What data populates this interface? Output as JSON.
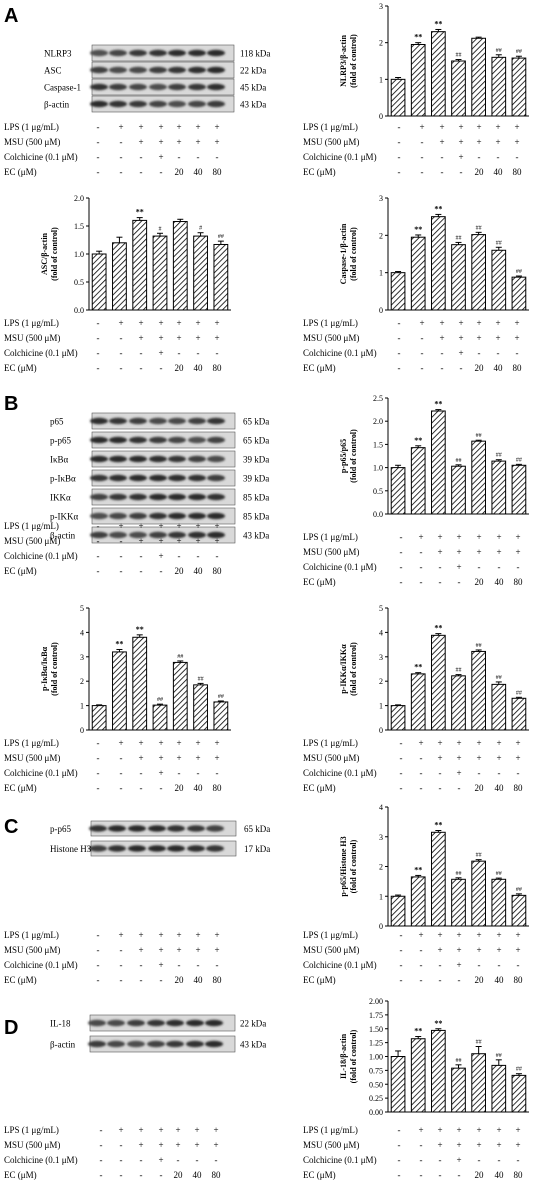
{
  "panels": [
    "A",
    "B",
    "C",
    "D"
  ],
  "treatment": {
    "row_labels": [
      "LPS (1 μg/mL)",
      "MSU (500 μM)",
      "Colchicine (0.1 μM)",
      "EC (μM)"
    ],
    "rows": [
      [
        "-",
        "+",
        "+",
        "+",
        "+",
        "+",
        "+"
      ],
      [
        "-",
        "-",
        "+",
        "+",
        "+",
        "+",
        "+"
      ],
      [
        "-",
        "-",
        "-",
        "+",
        "-",
        "-",
        "-"
      ],
      [
        "-",
        "-",
        "-",
        "-",
        "20",
        "40",
        "80"
      ]
    ]
  },
  "blots": [
    {
      "id": "A",
      "rows": [
        {
          "protein": "NLRP3",
          "size": "118 kDa"
        },
        {
          "protein": "ASC",
          "size": "22 kDa"
        },
        {
          "protein": "Caspase-1",
          "size": "45 kDa"
        },
        {
          "protein": "β-actin",
          "size": "43 kDa"
        }
      ]
    },
    {
      "id": "B",
      "rows": [
        {
          "protein": "p65",
          "size": "65 kDa"
        },
        {
          "protein": "p-p65",
          "size": "65 kDa"
        },
        {
          "protein": "IκBα",
          "size": "39 kDa"
        },
        {
          "protein": "p-IκBα",
          "size": "39 kDa"
        },
        {
          "protein": "IKKα",
          "size": "85 kDa"
        },
        {
          "protein": "p-IKKα",
          "size": "85 kDa"
        },
        {
          "protein": "β-actin",
          "size": "43 kDa"
        }
      ]
    },
    {
      "id": "C",
      "rows": [
        {
          "protein": "p-p65",
          "size": "65 kDa"
        },
        {
          "protein": "Histone H3",
          "size": "17 kDa"
        }
      ]
    },
    {
      "id": "D",
      "rows": [
        {
          "protein": "IL-18",
          "size": "22 kDa"
        },
        {
          "protein": "β-actin",
          "size": "43 kDa"
        }
      ]
    }
  ],
  "chart_data": [
    {
      "type": "bar",
      "ylabel": "NLRP3/β-actin (fold of control)",
      "ylim": [
        0,
        3
      ],
      "yticks": [
        "0",
        "1",
        "2",
        "3"
      ],
      "values": [
        1.0,
        1.95,
        2.3,
        1.5,
        2.12,
        1.6,
        1.58
      ],
      "errors": [
        0.05,
        0.05,
        0.06,
        0.04,
        0.03,
        0.07,
        0.05
      ],
      "annotations": [
        "",
        "**",
        "**",
        "##",
        "",
        "##",
        "##"
      ]
    },
    {
      "type": "bar",
      "ylabel": "ASC/β-actin (fold of control)",
      "ylim": [
        0,
        2.0
      ],
      "yticks": [
        "0.0",
        "0.5",
        "1.0",
        "1.5",
        "2.0"
      ],
      "values": [
        1.0,
        1.2,
        1.6,
        1.32,
        1.58,
        1.32,
        1.17
      ],
      "errors": [
        0.05,
        0.1,
        0.05,
        0.05,
        0.04,
        0.06,
        0.06
      ],
      "annotations": [
        "",
        "",
        "**",
        "#",
        "",
        "#",
        "##"
      ]
    },
    {
      "type": "bar",
      "ylabel": "Caspase-1/β-actin (fold of control)",
      "ylim": [
        0,
        3
      ],
      "yticks": [
        "0",
        "1",
        "2",
        "3"
      ],
      "values": [
        1.0,
        1.95,
        2.5,
        1.75,
        2.02,
        1.6,
        0.88
      ],
      "errors": [
        0.03,
        0.06,
        0.06,
        0.06,
        0.06,
        0.08,
        0.03
      ],
      "annotations": [
        "",
        "**",
        "**",
        "##",
        "##",
        "##",
        "##"
      ]
    },
    {
      "type": "bar",
      "ylabel": "p-p65/p65 (fold of control)",
      "ylim": [
        0,
        2.5
      ],
      "yticks": [
        "0.0",
        "0.5",
        "1.0",
        "1.5",
        "2.0",
        "2.5"
      ],
      "values": [
        1.0,
        1.43,
        2.22,
        1.03,
        1.57,
        1.14,
        1.05
      ],
      "errors": [
        0.05,
        0.04,
        0.03,
        0.03,
        0.02,
        0.03,
        0.02
      ],
      "annotations": [
        "",
        "**",
        "**",
        "##",
        "##",
        "##",
        "##"
      ]
    },
    {
      "type": "bar",
      "ylabel": "p-IκBα/IκBα (fold of control)",
      "ylim": [
        0,
        5
      ],
      "yticks": [
        "0",
        "1",
        "2",
        "3",
        "4",
        "5"
      ],
      "values": [
        1.0,
        3.2,
        3.8,
        1.02,
        2.77,
        1.85,
        1.15
      ],
      "errors": [
        0.03,
        0.1,
        0.1,
        0.04,
        0.06,
        0.06,
        0.04
      ],
      "annotations": [
        "",
        "**",
        "**",
        "##",
        "##",
        "##",
        "##"
      ]
    },
    {
      "type": "bar",
      "ylabel": "p-IKKα/IKKα (fold of control)",
      "ylim": [
        0,
        5
      ],
      "yticks": [
        "0",
        "1",
        "2",
        "3",
        "4",
        "5"
      ],
      "values": [
        1.0,
        2.3,
        3.88,
        2.22,
        3.22,
        1.87,
        1.3
      ],
      "errors": [
        0.03,
        0.05,
        0.07,
        0.05,
        0.06,
        0.1,
        0.04
      ],
      "annotations": [
        "",
        "**",
        "**",
        "##",
        "##",
        "##",
        "##"
      ]
    },
    {
      "type": "bar",
      "ylabel": "p-p65/Histone H3 (fold of control)",
      "ylim": [
        0,
        4
      ],
      "yticks": [
        "0",
        "1",
        "2",
        "3",
        "4"
      ],
      "values": [
        1.0,
        1.65,
        3.15,
        1.57,
        2.18,
        1.57,
        1.03
      ],
      "errors": [
        0.04,
        0.05,
        0.06,
        0.05,
        0.05,
        0.04,
        0.05
      ],
      "annotations": [
        "",
        "**",
        "**",
        "##",
        "##",
        "##",
        "##"
      ]
    },
    {
      "type": "bar",
      "ylabel": "IL-18/β-actin (fold of control)",
      "ylim": [
        0,
        2.0
      ],
      "yticks": [
        "0.00",
        "0.25",
        "0.50",
        "0.75",
        "1.00",
        "1.25",
        "1.50",
        "1.75",
        "2.00"
      ],
      "values": [
        1.0,
        1.32,
        1.47,
        0.79,
        1.05,
        0.84,
        0.66
      ],
      "errors": [
        0.1,
        0.04,
        0.03,
        0.06,
        0.13,
        0.1,
        0.03
      ],
      "annotations": [
        "",
        "**",
        "**",
        "##",
        "##",
        "##",
        "##"
      ]
    }
  ]
}
